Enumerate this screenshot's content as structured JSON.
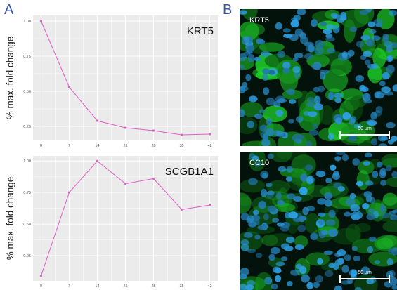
{
  "panels": {
    "a": "A",
    "b": "B"
  },
  "colors": {
    "line": "#e05fc8",
    "plot_bg": "#ebebeb",
    "grid": "#ffffff",
    "tick": "#555555"
  },
  "chart_data": [
    {
      "type": "line",
      "title": "KRT5",
      "ylabel": "% max. fold change",
      "xlabel": "",
      "x": [
        0,
        7,
        14,
        21,
        28,
        35,
        42
      ],
      "xticks": [
        "0",
        "7",
        "14",
        "21",
        "28",
        "35",
        "42"
      ],
      "yticks": [
        "0.25",
        "0.50",
        "0.75",
        "1.00"
      ],
      "ylim": [
        0.15,
        1.04
      ],
      "series": [
        {
          "values": [
            1.0,
            0.53,
            0.29,
            0.24,
            0.22,
            0.19,
            0.195
          ]
        }
      ],
      "grid": true
    },
    {
      "type": "line",
      "title": "SCGB1A1",
      "ylabel": "% max. fold change",
      "xlabel": "",
      "x": [
        0,
        7,
        14,
        21,
        28,
        35,
        42
      ],
      "xticks": [
        "0",
        "7",
        "14",
        "21",
        "28",
        "35",
        "42"
      ],
      "yticks": [
        "0.25",
        "0.50",
        "0.75",
        "1.00"
      ],
      "ylim": [
        0.05,
        1.04
      ],
      "series": [
        {
          "values": [
            0.09,
            0.75,
            1.0,
            0.82,
            0.86,
            0.615,
            0.65
          ]
        }
      ],
      "grid": true
    }
  ],
  "micrographs": [
    {
      "label": "KRT5",
      "scale": "50 µm"
    },
    {
      "label": "CC10",
      "scale": "50 µm"
    }
  ]
}
